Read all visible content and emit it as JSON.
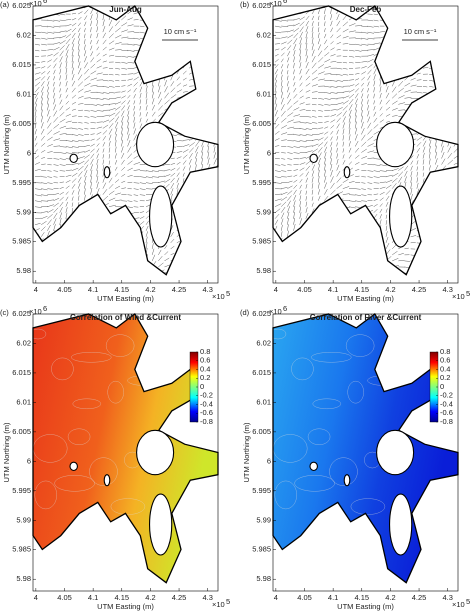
{
  "figure": {
    "x_axis_label": "UTM Easting (m)",
    "y_axis_label": "UTM Northing (m)",
    "x_exponent": {
      "base": "×10",
      "power": "5"
    },
    "y_exponent": {
      "base": "×10",
      "power": "6"
    },
    "xlim": [
      3.995,
      4.318
    ],
    "ylim": [
      5.978,
      6.025
    ],
    "xticks": [
      4,
      4.05,
      4.1,
      4.15,
      4.2,
      4.25,
      4.3
    ],
    "yticks": [
      5.98,
      5.985,
      5.99,
      5.995,
      6,
      6.005,
      6.01,
      6.015,
      6.02,
      6.025
    ],
    "panels": [
      {
        "label": "(a)",
        "title": "Jun-Aug",
        "kind": "quiver",
        "scale_label": "10 cm s⁻¹"
      },
      {
        "label": "(b)",
        "title": "Dec-Feb",
        "kind": "quiver",
        "scale_label": "10 cm s⁻¹"
      },
      {
        "label": "(c)",
        "title": "Correlation of Wind &Current",
        "kind": "correlation",
        "clim": [
          -0.8,
          0.8
        ],
        "cticks": [
          0.8,
          0.6,
          0.4,
          0.2,
          0,
          -0.2,
          -0.4,
          -0.6,
          -0.8
        ]
      },
      {
        "label": "(d)",
        "title": "Correlation of River &Current",
        "kind": "correlation",
        "clim": [
          -0.8,
          0.8
        ],
        "cticks": [
          0.8,
          0.6,
          0.4,
          0.2,
          0,
          -0.2,
          -0.4,
          -0.6,
          -0.8
        ]
      }
    ]
  }
}
